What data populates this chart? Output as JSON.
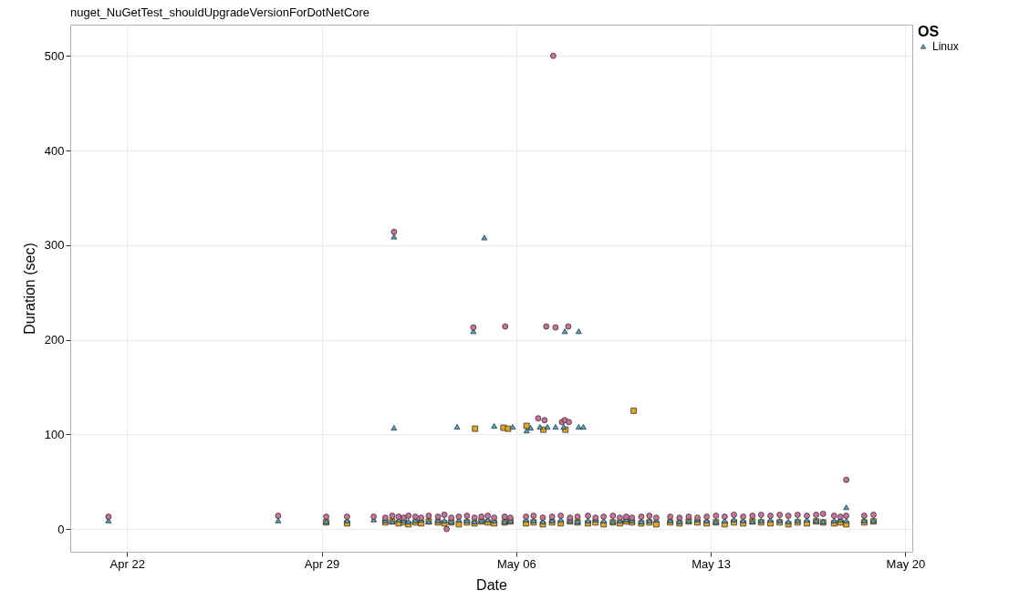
{
  "chart_data": {
    "type": "scatter",
    "title": "nuget_NuGetTest_shouldUpgradeVersionForDotNetCore",
    "xlabel": "Date",
    "ylabel": "Duration (sec)",
    "legend_title": "OS",
    "legend": "right",
    "grid": true,
    "xlim": [
      "--04-19T23:00",
      "--05-20T06:00"
    ],
    "xticks": [
      {
        "value": "--04-22",
        "label": "Apr 22"
      },
      {
        "value": "--04-29",
        "label": "Apr 29"
      },
      {
        "value": "--05-06",
        "label": "May 06"
      },
      {
        "value": "--05-13",
        "label": "May 13"
      },
      {
        "value": "--05-20",
        "label": "May 20"
      }
    ],
    "ylim": [
      -24,
      533
    ],
    "yticks": [
      0,
      100,
      200,
      300,
      400,
      500
    ],
    "series": [
      {
        "color": "#e0a526",
        "marker": "square",
        "x": [
          "--04-29T04:00",
          "--04-29T22:00",
          "--05-01T07:00",
          "--05-01T13:00",
          "--05-01T18:30",
          "--05-01T23:00",
          "--05-02T03:00",
          "--05-02T09:00",
          "--05-02T14:00",
          "--05-02T20:30",
          "--05-03T04:30",
          "--05-03T10:00",
          "--05-03T16:00",
          "--05-03T22:30",
          "--05-04T05:30",
          "--05-04T12:00",
          "--05-04T18:00",
          "--05-04T23:30",
          "--05-05T05:00",
          "--05-05T14:00",
          "--05-05T19:00",
          "--05-06T08:30",
          "--05-06T15:00",
          "--05-06T23:00",
          "--05-07T07:00",
          "--05-07T14:30",
          "--05-07T22:30",
          "--05-08T05:00",
          "--05-08T14:00",
          "--05-08T20:30",
          "--05-09T03:30",
          "--05-09T11:30",
          "--05-09T17:30",
          "--05-09T23:00",
          "--05-10T04:00",
          "--05-10T12:00",
          "--05-10T19:00",
          "--05-11T01:00",
          "--05-11T13:00",
          "--05-11T21:00",
          "--05-12T05:00",
          "--05-12T12:30",
          "--05-12T20:30",
          "--05-13T04:30",
          "--05-13T12:00",
          "--05-13T20:00",
          "--05-14T04:00",
          "--05-14T12:00",
          "--05-14T19:30",
          "--05-15T03:30",
          "--05-15T11:30",
          "--05-15T19:00",
          "--05-16T03:00",
          "--05-16T11:00",
          "--05-16T19:00",
          "--05-17T01:00",
          "--05-17T10:30",
          "--05-17T16:00",
          "--05-17T21:00",
          "--05-18T12:30",
          "--05-18T20:30",
          "--05-04T12:30",
          "--05-05T13:00",
          "--05-05T17:00",
          "--05-06T09:00",
          "--05-06T23:30",
          "--05-07T18:30",
          "--05-10T05:30"
        ],
        "values": [
          7,
          6,
          7,
          8,
          6,
          7,
          5,
          7,
          6,
          8,
          7,
          6,
          7,
          5,
          7,
          6,
          8,
          7,
          6,
          7,
          8,
          6,
          7,
          5,
          7,
          6,
          8,
          7,
          6,
          7,
          5,
          7,
          6,
          8,
          7,
          6,
          7,
          5,
          7,
          6,
          8,
          7,
          6,
          7,
          5,
          7,
          6,
          8,
          7,
          6,
          7,
          5,
          7,
          6,
          8,
          7,
          6,
          7,
          5,
          7,
          8,
          106,
          107,
          106,
          109,
          105,
          105,
          125
        ]
      },
      {
        "name": "Linux",
        "color": "#4aa3c8",
        "marker": "triangle",
        "x": [
          "--04-21T08:00",
          "--04-27T10:30",
          "--04-29T04:00",
          "--04-29T22:00",
          "--04-30T21:00",
          "--05-01T07:00",
          "--05-01T13:00",
          "--05-01T18:30",
          "--05-01T23:00",
          "--05-02T03:00",
          "--05-02T09:00",
          "--05-02T14:00",
          "--05-02T20:30",
          "--05-03T04:30",
          "--05-03T10:00",
          "--05-03T16:00",
          "--05-03T22:30",
          "--05-04T05:30",
          "--05-04T12:00",
          "--05-04T18:00",
          "--05-04T23:30",
          "--05-05T05:00",
          "--05-05T14:00",
          "--05-05T19:00",
          "--05-06T08:30",
          "--05-06T15:00",
          "--05-06T23:00",
          "--05-07T07:00",
          "--05-07T14:30",
          "--05-07T22:30",
          "--05-08T05:00",
          "--05-08T14:00",
          "--05-08T20:30",
          "--05-09T03:30",
          "--05-09T11:30",
          "--05-09T17:30",
          "--05-09T23:00",
          "--05-10T04:00",
          "--05-10T12:00",
          "--05-10T19:00",
          "--05-11T01:00",
          "--05-11T13:00",
          "--05-11T21:00",
          "--05-12T05:00",
          "--05-12T12:30",
          "--05-12T20:30",
          "--05-13T04:30",
          "--05-13T12:00",
          "--05-13T20:00",
          "--05-14T04:00",
          "--05-14T12:00",
          "--05-14T19:30",
          "--05-15T03:30",
          "--05-15T11:30",
          "--05-15T19:00",
          "--05-16T03:00",
          "--05-16T11:00",
          "--05-16T19:00",
          "--05-17T01:00",
          "--05-17T10:30",
          "--05-17T16:00",
          "--05-17T21:00",
          "--05-18T12:30",
          "--05-18T20:30",
          "--05-01T14:30",
          "--05-04T20:30",
          "--05-04T11:00",
          "--05-07T18:00",
          "--05-08T06:00",
          "--05-01T14:30",
          "--05-03T21:00",
          "--05-05T05:00",
          "--05-05T21:00",
          "--05-06T09:00",
          "--05-06T12:30",
          "--05-06T20:30",
          "--05-07T03:00",
          "--05-07T10:00",
          "--05-07T17:00",
          "--05-08T06:00",
          "--05-08T10:00",
          "--05-17T21:00"
        ],
        "values": [
          9,
          9,
          8,
          9,
          10,
          9,
          8,
          10,
          9,
          8,
          9,
          10,
          8,
          9,
          9,
          8,
          10,
          9,
          8,
          9,
          10,
          9,
          8,
          9,
          10,
          9,
          8,
          9,
          10,
          9,
          8,
          9,
          10,
          9,
          8,
          9,
          10,
          9,
          8,
          9,
          10,
          9,
          8,
          9,
          10,
          9,
          8,
          9,
          10,
          9,
          8,
          9,
          10,
          9,
          8,
          9,
          10,
          9,
          8,
          9,
          10,
          9,
          9,
          9,
          309,
          308,
          209,
          209,
          209,
          107,
          108,
          109,
          108,
          104,
          107,
          108,
          108,
          108,
          108,
          108,
          108,
          23
        ]
      },
      {
        "color": "#c9739a",
        "marker": "circle",
        "x": [
          "--04-21T08:00",
          "--04-27T10:30",
          "--04-29T04:00",
          "--04-29T22:00",
          "--04-30T21:00",
          "--05-01T07:00",
          "--05-01T13:00",
          "--05-01T18:30",
          "--05-01T23:00",
          "--05-02T03:00",
          "--05-02T09:00",
          "--05-02T14:00",
          "--05-02T20:30",
          "--05-03T04:30",
          "--05-03T10:00",
          "--05-03T16:00",
          "--05-03T22:30",
          "--05-04T05:30",
          "--05-04T12:00",
          "--05-04T18:00",
          "--05-04T23:30",
          "--05-05T05:00",
          "--05-05T14:00",
          "--05-05T19:00",
          "--05-06T08:30",
          "--05-06T15:00",
          "--05-06T23:00",
          "--05-07T07:00",
          "--05-07T14:30",
          "--05-07T22:30",
          "--05-08T05:00",
          "--05-08T14:00",
          "--05-08T20:30",
          "--05-09T03:30",
          "--05-09T11:30",
          "--05-09T17:30",
          "--05-09T23:00",
          "--05-10T04:00",
          "--05-10T12:00",
          "--05-10T19:00",
          "--05-11T01:00",
          "--05-11T13:00",
          "--05-11T21:00",
          "--05-12T05:00",
          "--05-12T12:30",
          "--05-12T20:30",
          "--05-13T04:30",
          "--05-13T12:00",
          "--05-13T20:00",
          "--05-14T04:00",
          "--05-14T12:00",
          "--05-14T19:30",
          "--05-15T03:30",
          "--05-15T11:30",
          "--05-15T19:00",
          "--05-16T03:00",
          "--05-16T11:00",
          "--05-16T19:00",
          "--05-17T01:00",
          "--05-17T10:30",
          "--05-17T16:00",
          "--05-17T21:00",
          "--05-18T12:30",
          "--05-18T20:30",
          "--05-07T08:00",
          "--05-01T14:30",
          "--05-04T11:00",
          "--05-05T14:30",
          "--05-07T02:00",
          "--05-07T10:00",
          "--05-07T21:00",
          "--05-06T19:00",
          "--05-07T00:30",
          "--05-07T15:30",
          "--05-07T18:00",
          "--05-07T21:30",
          "--05-03T12:00",
          "--05-17T21:00"
        ],
        "values": [
          13,
          14,
          13,
          13,
          13,
          12,
          14,
          13,
          12,
          14,
          13,
          12,
          14,
          13,
          15,
          12,
          13,
          14,
          12,
          13,
          14,
          12,
          13,
          12,
          13,
          14,
          12,
          13,
          14,
          12,
          13,
          14,
          12,
          13,
          14,
          12,
          13,
          12,
          13,
          14,
          12,
          13,
          12,
          13,
          12,
          13,
          14,
          13,
          15,
          13,
          14,
          15,
          14,
          15,
          14,
          15,
          14,
          15,
          16,
          14,
          13,
          14,
          14,
          15,
          500,
          314,
          213,
          214,
          214,
          213,
          214,
          117,
          115,
          113,
          115,
          113,
          0,
          52
        ]
      }
    ]
  }
}
